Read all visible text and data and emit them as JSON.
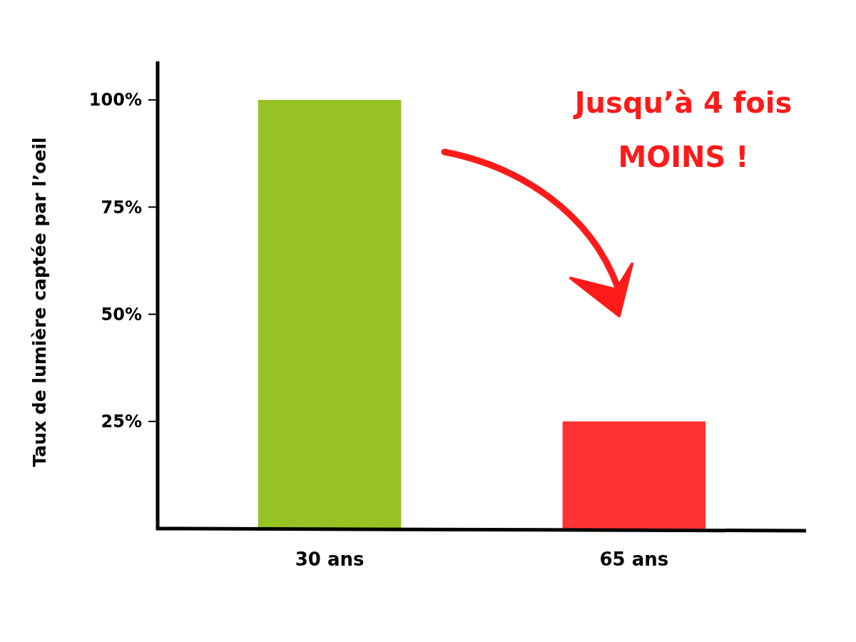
{
  "chart_data": {
    "type": "bar",
    "ylabel": "Taux de lumière captée par l’oeil",
    "categories": [
      "30 ans",
      "65 ans"
    ],
    "values": [
      100,
      25
    ],
    "colors": [
      "#97c224",
      "#ff3333"
    ],
    "ylim": [
      0,
      109
    ],
    "yticks": [
      {
        "value": 25,
        "label": "25%"
      },
      {
        "value": 50,
        "label": "50%"
      },
      {
        "value": 75,
        "label": "75%"
      },
      {
        "value": 100,
        "label": "100%"
      }
    ],
    "annotations": [
      "Jusqu’à 4 fois MOINS !"
    ],
    "grid": false
  }
}
